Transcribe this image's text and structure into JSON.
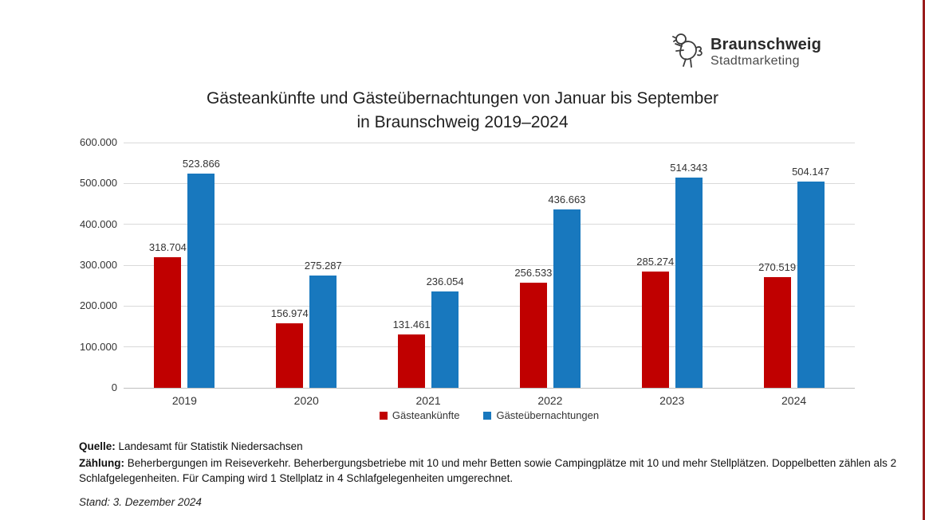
{
  "logo": {
    "name": "Braunschweig",
    "subtitle": "Stadtmarketing",
    "icon": "braunschweig-lion-icon"
  },
  "chart_data": {
    "type": "bar",
    "title_lines": [
      "Gästeankünfte und Gästeübernachtungen von Januar bis September",
      "in Braunschweig 2019–2024"
    ],
    "categories": [
      "2019",
      "2020",
      "2021",
      "2022",
      "2023",
      "2024"
    ],
    "series": [
      {
        "name": "Gästeankünfte",
        "color": "#C00000",
        "values": [
          318704,
          156974,
          131461,
          256533,
          285274,
          270519
        ],
        "labels": [
          "318.704",
          "156.974",
          "131.461",
          "256.533",
          "285.274",
          "270.519"
        ]
      },
      {
        "name": "Gästeübernachtungen",
        "color": "#1878BE",
        "values": [
          523866,
          275287,
          236054,
          436663,
          514343,
          504147
        ],
        "labels": [
          "523.866",
          "275.287",
          "236.054",
          "436.663",
          "514.343",
          "504.147"
        ]
      }
    ],
    "ylim": [
      0,
      600000
    ],
    "ytick_step": 100000,
    "ytick_labels": [
      "0",
      "100.000",
      "200.000",
      "300.000",
      "400.000",
      "500.000",
      "600.000"
    ],
    "grid": true,
    "legend_position": "bottom",
    "xlabel": "",
    "ylabel": ""
  },
  "footer": {
    "quelle_label": "Quelle:",
    "quelle_text": " Landesamt für Statistik Niedersachsen",
    "zaehlung_label": "Zählung:",
    "zaehlung_text": " Beherbergungen im Reiseverkehr. Beherbergungsbetriebe mit 10 und mehr Betten sowie Campingplätze mit 10 und mehr Stellplätzen. Doppelbetten zählen als 2 Schlafgelegenheiten. Für Camping wird 1 Stellplatz in 4 Schlafgelegenheiten umgerechnet.",
    "stand": "Stand: 3. Dezember 2024"
  }
}
